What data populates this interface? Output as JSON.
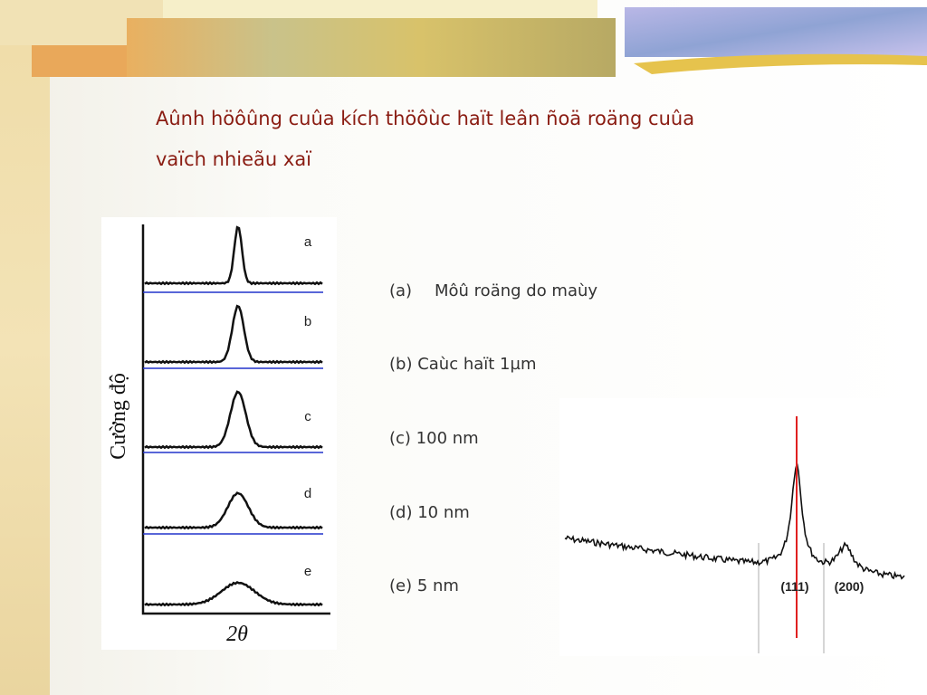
{
  "header": {
    "title_lines": [
      "Aûnh höôûng cuûa kích thöôùc haït leân ñoä roäng cuûa",
      "vaïch nhieãu xaï"
    ]
  },
  "figure_left": {
    "y_label": "Cường độ",
    "x_label": "2θ",
    "curve_labels": [
      "a",
      "b",
      "c",
      "d",
      "e"
    ]
  },
  "list": {
    "items": [
      {
        "marker": "(a)",
        "text": "Môû roäng do maùy"
      },
      {
        "text": "(b) Caùc haït 1µm"
      },
      {
        "text": "(c) 100 nm"
      },
      {
        "text": "(d) 10 nm"
      },
      {
        "text": "(e) 5 nm"
      }
    ]
  },
  "figure_right": {
    "peak_labels": [
      "(111)",
      "(200)"
    ]
  }
}
